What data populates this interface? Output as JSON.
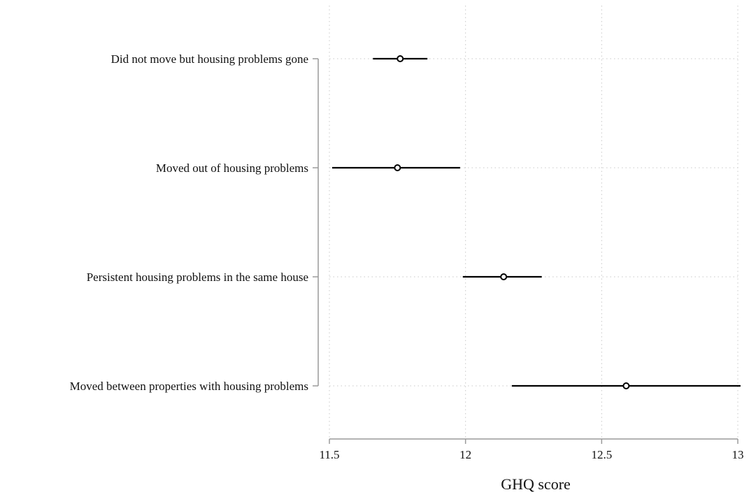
{
  "chart_data": {
    "type": "scatter",
    "subtype": "coefficient-plot-with-confidence-intervals",
    "orientation": "horizontal",
    "title": "",
    "xlabel": "GHQ score",
    "ylabel": "",
    "xlim": [
      11.5,
      13
    ],
    "xticks": [
      11.5,
      12,
      12.5,
      13
    ],
    "xtick_labels": [
      "11.5",
      "12",
      "12.5",
      "13"
    ],
    "grid": true,
    "grid_style": "dotted",
    "categories": [
      "Did not move but housing problems gone",
      "Moved out of housing problems",
      "Persistent housing problems in the same house",
      "Moved between properties with housing problems"
    ],
    "estimates": [
      11.76,
      11.75,
      12.14,
      12.59
    ],
    "ci_lower": [
      11.66,
      11.51,
      11.99,
      12.17
    ],
    "ci_upper": [
      11.86,
      11.98,
      12.28,
      13.01
    ],
    "colors": {
      "marker": "#000000",
      "grid": "#c8c8c8",
      "axis": "#9a9a9a"
    }
  }
}
